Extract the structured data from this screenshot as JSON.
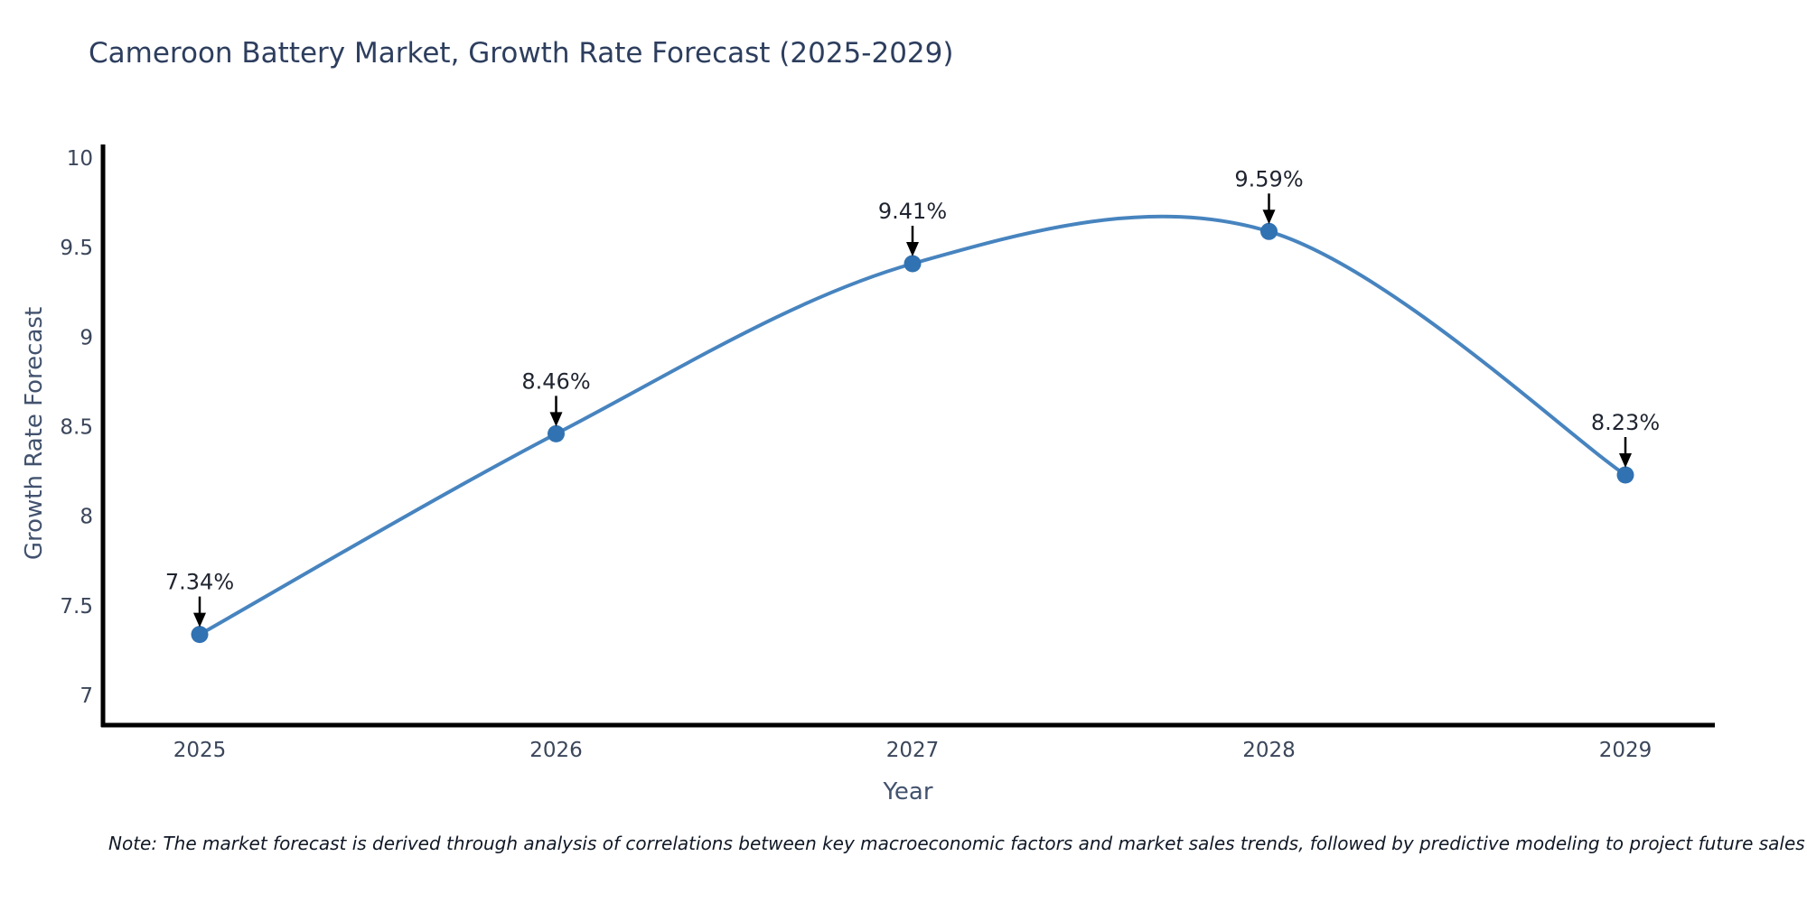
{
  "title": "Cameroon Battery Market, Growth Rate Forecast (2025-2029)",
  "note": "Note: The market forecast is derived through analysis of correlations between key macroeconomic factors and market sales trends, followed by predictive modeling to project future sales",
  "chart_data": {
    "type": "line",
    "title": "Cameroon Battery Market, Growth Rate Forecast (2025-2029)",
    "x": [
      2025,
      2026,
      2027,
      2028,
      2029
    ],
    "values": [
      7.34,
      8.46,
      9.41,
      9.59,
      8.23
    ],
    "point_labels": [
      "7.34%",
      "8.46%",
      "9.41%",
      "9.59%",
      "8.23%"
    ],
    "series_name": "Growth Rate Forecast",
    "xlabel": "Year",
    "ylabel": "Growth Rate Forecast",
    "yticks": [
      10,
      9.5,
      9,
      8.5,
      8,
      7.5,
      7
    ],
    "xtick_labels": [
      "2025",
      "2026",
      "2027",
      "2028",
      "2029"
    ],
    "ylim": [
      6.85,
      10.08
    ],
    "xlim": [
      2024.73,
      2029.25
    ],
    "grid": false,
    "legend": "none",
    "line_shape": "spline",
    "marker": "circle",
    "annotation_arrows": true,
    "colors": {
      "line": "#4784bf",
      "marker": "#3172b2",
      "axis": "#000000",
      "tick_text": "#3b465a",
      "axis_label_text": "#42526e",
      "title_text": "#2d3e5e",
      "annotation_text": "#1f2430",
      "arrow": "#000000",
      "note_text": "#101826",
      "background": "#ffffff"
    }
  }
}
